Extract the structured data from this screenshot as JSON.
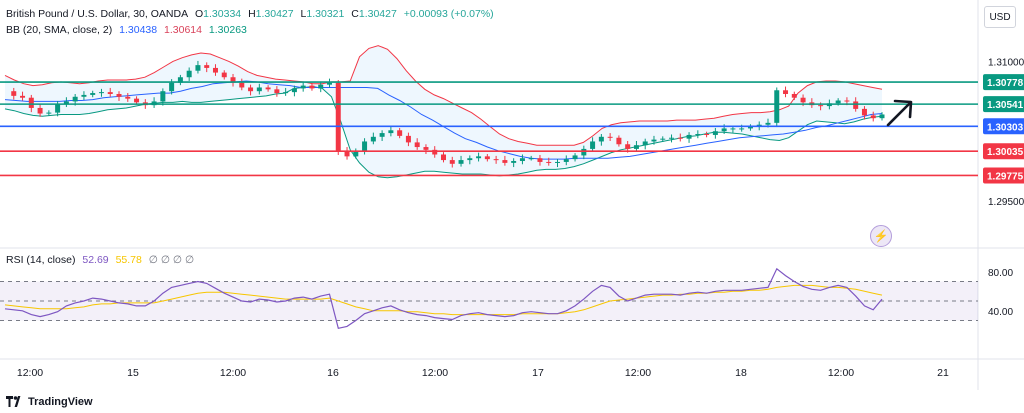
{
  "header": {
    "symbol": "British Pound / U.S. Dollar, 30, OANDA",
    "o_label": "O",
    "o_value": "1.30334",
    "h_label": "H",
    "h_value": "1.30427",
    "l_label": "L",
    "l_value": "1.30321",
    "c_label": "C",
    "c_value": "1.30427",
    "change": "+0.00093 (+0.07%)"
  },
  "bb_legend": {
    "label": "BB (20, SMA, close, 2)",
    "basis": "1.30438",
    "upper": "1.30614",
    "lower": "1.30263"
  },
  "rsi_legend": {
    "label": "RSI (14, close)",
    "value": "52.69",
    "ma": "55.78",
    "extras": "∅ ∅ ∅ ∅"
  },
  "currency_button": "USD",
  "brand": "TradingView",
  "chart_data": {
    "type": "candlestick",
    "y_ticks": [
      "1.31000",
      "1.29500"
    ],
    "ylim": [
      1.2935,
      1.3123
    ],
    "x_ticks": [
      "12:00",
      "15",
      "12:00",
      "16",
      "12:00",
      "17",
      "12:00",
      "18",
      "12:00",
      "21"
    ],
    "levels": [
      {
        "value": "1.30778",
        "color": "#089981"
      },
      {
        "value": "1.30541",
        "color": "#089981"
      },
      {
        "value": "1.30303",
        "color": "#2962ff"
      },
      {
        "value": "1.30035",
        "color": "#f23645"
      },
      {
        "value": "1.29775",
        "color": "#f23645"
      }
    ],
    "price_path": [
      1.3068,
      1.3063,
      1.3061,
      1.305,
      1.3044,
      1.3045,
      1.3054,
      1.3057,
      1.3062,
      1.3064,
      1.3066,
      1.3067,
      1.3065,
      1.3062,
      1.306,
      1.3056,
      1.3053,
      1.3057,
      1.3068,
      1.3077,
      1.3083,
      1.309,
      1.3096,
      1.3093,
      1.3088,
      1.3083,
      1.3077,
      1.3072,
      1.3068,
      1.3072,
      1.307,
      1.3066,
      1.3067,
      1.3071,
      1.3074,
      1.3071,
      1.3075,
      1.3077,
      1.3004,
      1.2998,
      1.3004,
      1.3014,
      1.3019,
      1.3023,
      1.3026,
      1.302,
      1.3013,
      1.3008,
      1.3005,
      1.3,
      1.2994,
      1.299,
      1.2994,
      1.2996,
      1.2998,
      1.2995,
      1.2994,
      1.2991,
      1.2993,
      1.2996,
      1.2996,
      1.2992,
      1.2991,
      1.2992,
      1.2995,
      1.2999,
      1.3006,
      1.3014,
      1.3019,
      1.3018,
      1.3011,
      1.3006,
      1.301,
      1.3014,
      1.3016,
      1.3017,
      1.3018,
      1.3017,
      1.3021,
      1.3022,
      1.3021,
      1.3025,
      1.3028,
      1.3028,
      1.3028,
      1.303,
      1.3032,
      1.3034,
      1.3069,
      1.3065,
      1.3061,
      1.3056,
      1.3053,
      1.3052,
      1.3055,
      1.3058,
      1.3057,
      1.3049,
      1.3042,
      1.3039,
      1.3043
    ],
    "bb_upper": [
      1.3085,
      1.308,
      1.3076,
      1.3074,
      1.3075,
      1.3077,
      1.3078,
      1.3077,
      1.3076,
      1.3077,
      1.3079,
      1.308,
      1.308,
      1.308,
      1.3081,
      1.3083,
      1.3088,
      1.3094,
      1.31,
      1.3104,
      1.3107,
      1.3109,
      1.3108,
      1.3104,
      1.31,
      1.3095,
      1.3089,
      1.3085,
      1.3083,
      1.3081,
      1.308,
      1.3079,
      1.3078,
      1.3076,
      1.3076,
      1.3078,
      1.3078,
      1.3079,
      1.3105,
      1.3114,
      1.3117,
      1.3113,
      1.3103,
      1.309,
      1.3079,
      1.307,
      1.3064,
      1.306,
      1.3055,
      1.305,
      1.3045,
      1.3038,
      1.303,
      1.3022,
      1.3017,
      1.3014,
      1.3012,
      1.301,
      1.301,
      1.301,
      1.301,
      1.301,
      1.3013,
      1.302,
      1.3028,
      1.3032,
      1.3034,
      1.3035,
      1.3036,
      1.3036,
      1.3036,
      1.3036,
      1.3037,
      1.3037,
      1.3037,
      1.3038,
      1.3039,
      1.3041,
      1.3043,
      1.3044,
      1.3045,
      1.3045,
      1.3046,
      1.3048,
      1.3052,
      1.3066,
      1.3074,
      1.3078,
      1.3079,
      1.3079,
      1.3078,
      1.3076,
      1.3074,
      1.3072,
      1.307
    ],
    "bb_basis": [
      1.3059,
      1.3058,
      1.3057,
      1.3057,
      1.3057,
      1.3057,
      1.3058,
      1.3058,
      1.3059,
      1.3061,
      1.3062,
      1.3063,
      1.3064,
      1.3065,
      1.3066,
      1.3066,
      1.3068,
      1.3071,
      1.3073,
      1.3076,
      1.3077,
      1.3078,
      1.3079,
      1.3078,
      1.3076,
      1.3075,
      1.3074,
      1.3072,
      1.3072,
      1.3072,
      1.3072,
      1.3072,
      1.3072,
      1.3072,
      1.3071,
      1.3064,
      1.3058,
      1.3051,
      1.3043,
      1.3037,
      1.303,
      1.3023,
      1.3017,
      1.3013,
      1.3008,
      1.3004,
      1.3001,
      1.2998,
      1.2996,
      1.2995,
      1.2995,
      1.2995,
      1.2996,
      1.2996,
      1.2996,
      1.2996,
      1.2997,
      1.2998,
      1.3,
      1.3002,
      1.3004,
      1.3006,
      1.3008,
      1.301,
      1.3012,
      1.3014,
      1.3016,
      1.3018,
      1.3019,
      1.302,
      1.3021,
      1.3022,
      1.3024,
      1.3026,
      1.3029,
      1.3031,
      1.3034,
      1.3037,
      1.304,
      1.3043,
      1.3044
    ],
    "bb_lower": [
      1.3049,
      1.3047,
      1.3044,
      1.3042,
      1.3041,
      1.3042,
      1.3043,
      1.3043,
      1.3043,
      1.3044,
      1.3046,
      1.3048,
      1.3049,
      1.305,
      1.3052,
      1.3054,
      1.3055,
      1.3056,
      1.3056,
      1.3057,
      1.3056,
      1.3056,
      1.3057,
      1.3058,
      1.3059,
      1.306,
      1.3061,
      1.3062,
      1.3063,
      1.3065,
      1.3066,
      1.3071,
      1.3072,
      1.3073,
      1.3071,
      1.3062,
      1.3035,
      1.3005,
      1.2991,
      1.2981,
      1.2976,
      1.2975,
      1.2976,
      1.2978,
      1.298,
      1.2982,
      1.2982,
      1.2981,
      1.298,
      1.2979,
      1.2979,
      1.2979,
      1.2978,
      1.2977,
      1.2978,
      1.2979,
      1.2981,
      1.2983,
      1.2984,
      1.2984,
      1.2985,
      1.2987,
      1.299,
      1.2994,
      1.2998,
      1.3002,
      1.3005,
      1.3007,
      1.3009,
      1.3011,
      1.3013,
      1.3015,
      1.3017,
      1.3019,
      1.302,
      1.3022,
      1.3024,
      1.3024,
      1.3023,
      1.3022,
      1.302,
      1.3018,
      1.3016,
      1.3015,
      1.3018,
      1.3025,
      1.3032,
      1.3036,
      1.3035,
      1.3034,
      1.3033,
      1.3035,
      1.3038,
      1.304,
      1.3041
    ],
    "rsi_y_ticks": [
      "80.00",
      "40.00"
    ],
    "rsi_levels": [
      70,
      50,
      30
    ],
    "rsi_ylim": [
      10,
      90
    ],
    "rsi": [
      42,
      41,
      40,
      36,
      34,
      36,
      39,
      45,
      48,
      50,
      53,
      52,
      50,
      48,
      47,
      45,
      45,
      50,
      58,
      64,
      66,
      68,
      70,
      68,
      63,
      58,
      54,
      50,
      49,
      52,
      51,
      49,
      50,
      53,
      54,
      52,
      55,
      57,
      22,
      24,
      30,
      37,
      40,
      43,
      45,
      41,
      38,
      36,
      35,
      33,
      32,
      31,
      35,
      37,
      38,
      36,
      35,
      34,
      35,
      38,
      39,
      38,
      37,
      37,
      40,
      45,
      52,
      60,
      66,
      64,
      55,
      50,
      53,
      56,
      57,
      57,
      57,
      56,
      58,
      59,
      58,
      60,
      61,
      61,
      61,
      62,
      63,
      64,
      83,
      76,
      70,
      65,
      62,
      61,
      64,
      66,
      64,
      55,
      45,
      41,
      52
    ],
    "rsi_ma": [
      46,
      45,
      44,
      43,
      42,
      42,
      42,
      42,
      43,
      44,
      46,
      47,
      47,
      48,
      48,
      48,
      48,
      48,
      50,
      52,
      54,
      56,
      58,
      59,
      59,
      59,
      58,
      57,
      56,
      55,
      54,
      53,
      52,
      52,
      52,
      52,
      52,
      53,
      50,
      47,
      44,
      42,
      40,
      40,
      40,
      40,
      39,
      39,
      38,
      37,
      37,
      36,
      36,
      36,
      36,
      36,
      36,
      36,
      36,
      37,
      37,
      37,
      37,
      37,
      38,
      39,
      41,
      44,
      47,
      50,
      51,
      52,
      53,
      54,
      55,
      56,
      56,
      57,
      57,
      58,
      58,
      59,
      59,
      60,
      60,
      61,
      61,
      62,
      64,
      65,
      66,
      66,
      66,
      65,
      64,
      64,
      63,
      62,
      60,
      58,
      56
    ]
  }
}
